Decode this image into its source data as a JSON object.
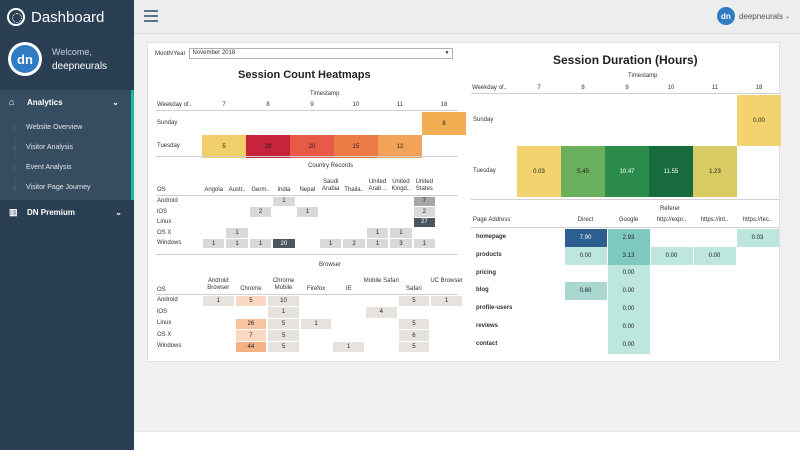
{
  "sidebar": {
    "brand": "Dashboard",
    "avatar_initials": "dn",
    "welcome": "Welcome,",
    "username": "deepneurals",
    "nav": [
      {
        "label": "Analytics",
        "icon": "home-icon"
      },
      {
        "label": "DN Premium",
        "icon": "bar-chart-icon"
      }
    ],
    "subnav": [
      "Website Overview",
      "Visitor Analysis",
      "Event Analysis",
      "Visitor Page Journey"
    ]
  },
  "topbar": {
    "user": "deepneurals",
    "avatar_initials": "dn"
  },
  "filter": {
    "label": "Month/Year",
    "value": "November 2018"
  },
  "heatmap": {
    "title": "Session Count Heatmaps",
    "timestamp_label": "Timestamp",
    "row_header": "Weekday of..",
    "columns": [
      "7",
      "8",
      "9",
      "10",
      "11",
      "18"
    ],
    "rows": [
      {
        "label": "Sunday",
        "values": [
          "",
          "",
          "",
          "",
          "",
          "8"
        ]
      },
      {
        "label": "Tuesday",
        "values": [
          "5",
          "28",
          "20",
          "15",
          "12",
          ""
        ]
      }
    ],
    "colors": {
      "5": "#f0cf6b",
      "28": "#c8233c",
      "20": "#e85a47",
      "15": "#ed7b45",
      "12": "#f2a35a",
      "8": "#f2ae52"
    }
  },
  "country": {
    "title": "Country Records",
    "os_label": "OS",
    "columns": [
      "Angola",
      "Austr..",
      "Germ..",
      "India",
      "Nepal",
      "Saudi Arabia",
      "Thaila..",
      "United Arab ..",
      "United Kingd..",
      "United States"
    ],
    "rows": [
      {
        "label": "Android",
        "values": [
          "",
          "",
          "",
          "1",
          "",
          "",
          "",
          "",
          "",
          "7"
        ]
      },
      {
        "label": "iOS",
        "values": [
          "",
          "",
          "2",
          "",
          "1",
          "",
          "",
          "",
          "",
          "2"
        ]
      },
      {
        "label": "Linux",
        "values": [
          "",
          "",
          "",
          "",
          "",
          "",
          "",
          "",
          "",
          "27"
        ]
      },
      {
        "label": "OS X",
        "values": [
          "",
          "1",
          "",
          "",
          "",
          "",
          "",
          "1",
          "1",
          ""
        ]
      },
      {
        "label": "Windows",
        "values": [
          "1",
          "1",
          "1",
          "20",
          "",
          "1",
          "2",
          "1",
          "3",
          "1"
        ]
      }
    ]
  },
  "browser": {
    "title": "Browser",
    "os_label": "OS",
    "columns": [
      "Android Browser",
      "Chrome",
      "Chrome Mobile",
      "Firefox",
      "IE",
      "Mobile Safari",
      "Safari",
      "UC Browser"
    ],
    "rows": [
      {
        "label": "Android",
        "values": [
          "1",
          "5",
          "10",
          "",
          "",
          "",
          "5",
          "1"
        ]
      },
      {
        "label": "iOS",
        "values": [
          "",
          "",
          "1",
          "",
          "",
          "4",
          "",
          ""
        ]
      },
      {
        "label": "Linux",
        "values": [
          "",
          "26",
          "5",
          "1",
          "",
          "",
          "5",
          ""
        ]
      },
      {
        "label": "OS X",
        "values": [
          "",
          "7",
          "5",
          "",
          "",
          "",
          "6",
          ""
        ]
      },
      {
        "label": "Windows",
        "values": [
          "",
          "44",
          "5",
          "",
          "1",
          "",
          "5",
          ""
        ]
      }
    ]
  },
  "duration": {
    "title": "Session Duration (Hours)",
    "timestamp_label": "Timestamp",
    "row_header": "Weekday of..",
    "columns": [
      "7",
      "8",
      "9",
      "10",
      "11",
      "18"
    ],
    "rows": [
      {
        "label": "Sunday",
        "values": [
          "",
          "",
          "",
          "",
          "",
          "0.00"
        ]
      },
      {
        "label": "Tuesday",
        "values": [
          "0.03",
          "5.45",
          "10.47",
          "11.55",
          "1.23",
          ""
        ]
      }
    ],
    "colors": {
      "0.03": "#f2d36f",
      "5.45": "#6ab05c",
      "10.47": "#2a8b4a",
      "11.55": "#176b3c",
      "1.23": "#d8cb64",
      "0.00": "#f2d36f"
    }
  },
  "referer": {
    "title": "Referer",
    "row_header": "Page Address",
    "columns": [
      "Direct",
      "Google",
      "http://expr..",
      "https://int..",
      "https://tec.."
    ],
    "rows": [
      {
        "label": "homepage",
        "values": [
          "7.90",
          "2.93",
          "",
          "",
          "0.03"
        ]
      },
      {
        "label": "products",
        "values": [
          "0.00",
          "3.13",
          "0.00",
          "0.00",
          ""
        ]
      },
      {
        "label": "pricing",
        "values": [
          "",
          "0.00",
          "",
          "",
          ""
        ]
      },
      {
        "label": "blog",
        "values": [
          "0.60",
          "0.00",
          "",
          "",
          ""
        ]
      },
      {
        "label": "profile-users",
        "values": [
          "",
          "0.00",
          "",
          "",
          ""
        ]
      },
      {
        "label": "reviews",
        "values": [
          "",
          "0.00",
          "",
          "",
          ""
        ]
      },
      {
        "label": "contact",
        "values": [
          "",
          "0.00",
          "",
          "",
          ""
        ]
      }
    ],
    "colors": {
      "7.90": "#2c5f8f",
      "2.93": "#7ec8bf",
      "3.13": "#7ec8bf",
      "0.60": "#a8d8d0",
      "0.03": "#bde6dd",
      "0.00": "#bde6dd"
    }
  }
}
